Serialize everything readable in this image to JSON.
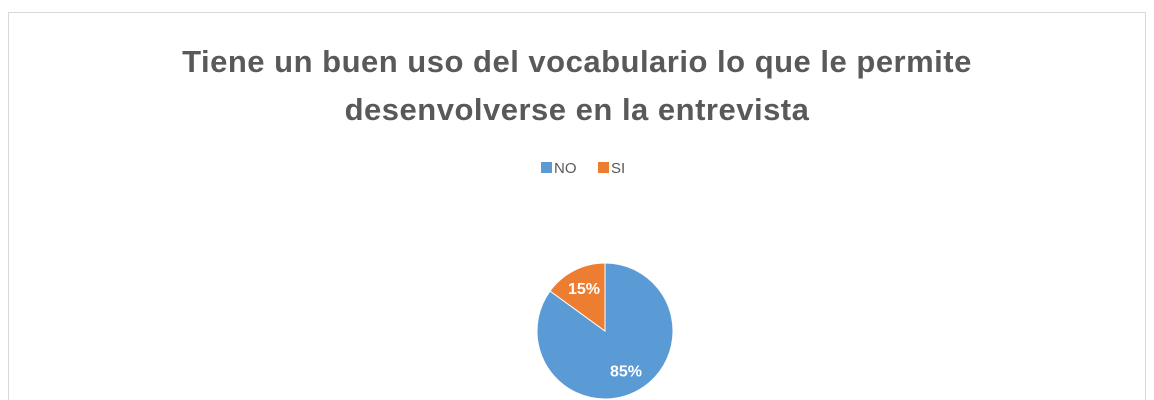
{
  "chart_data": {
    "type": "pie",
    "title": "Tiene un buen uso del vocabulario lo que le permite desenvolverse en la entrevista",
    "categories": [
      "NO",
      "SI"
    ],
    "values": [
      85,
      15
    ],
    "value_labels": [
      "85%",
      "15%"
    ],
    "colors": [
      "#5b9bd5",
      "#ed7d31"
    ],
    "legend": "top"
  }
}
